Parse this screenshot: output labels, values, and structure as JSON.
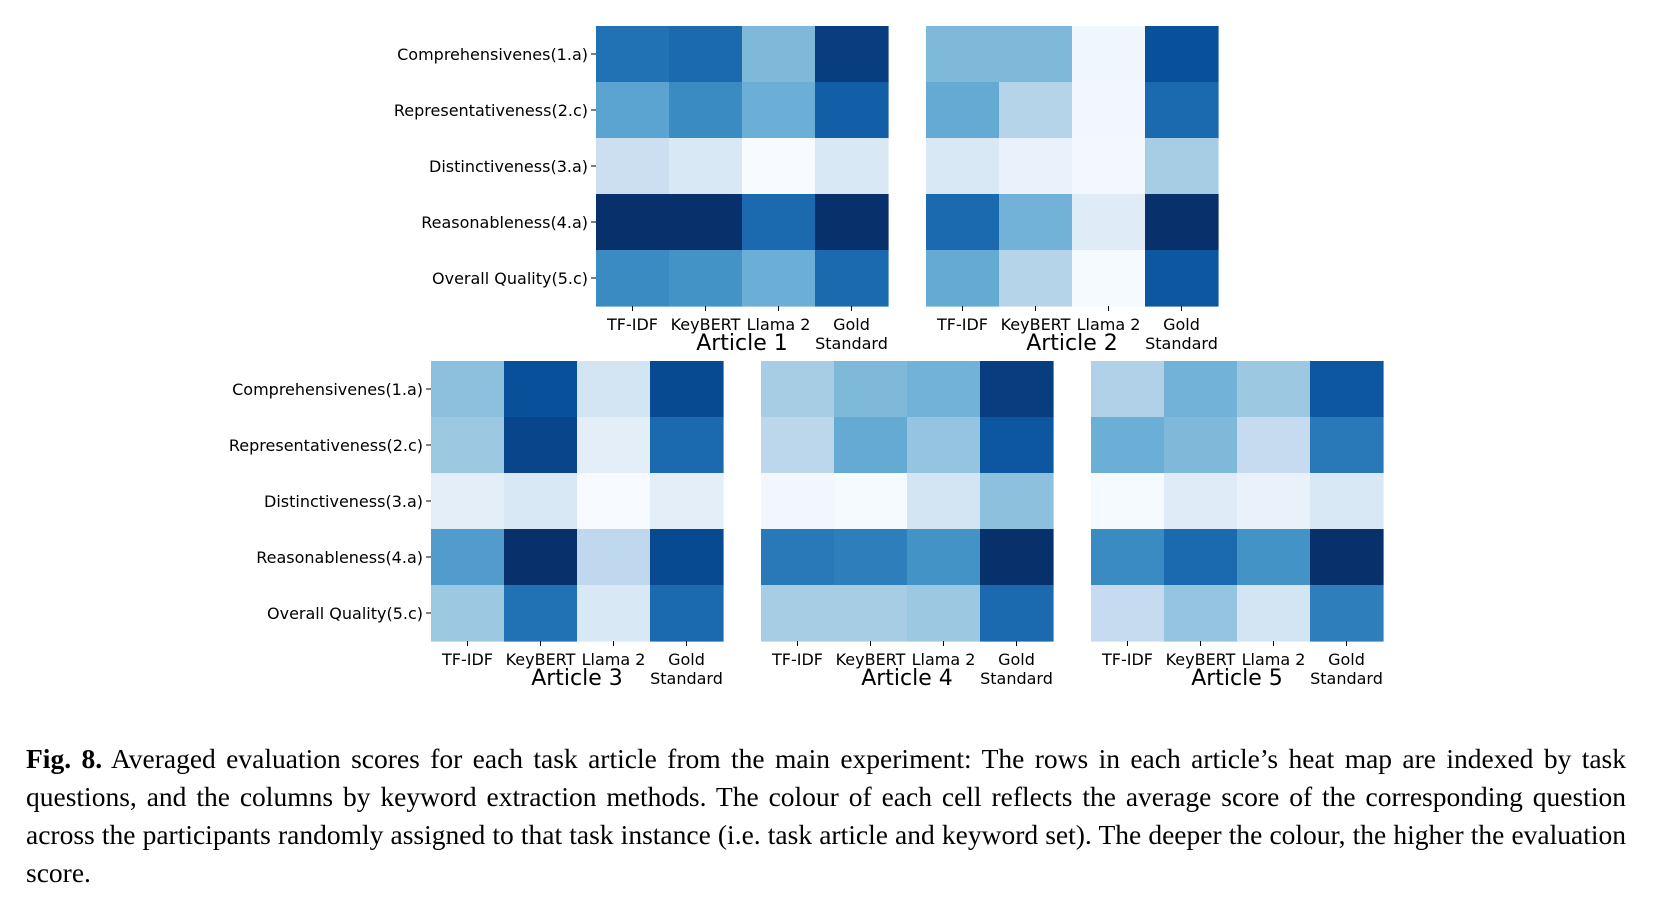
{
  "chart_data": [
    {
      "type": "heatmap",
      "title": "Article 1",
      "rows": [
        "Comprehensivenes(1.a)",
        "Representativeness(2.c)",
        "Distinctiveness(3.a)",
        "Reasonableness(4.a)",
        "Overall Quality(5.c)"
      ],
      "columns": [
        "TF-IDF",
        "KeyBERT",
        "Llama 2",
        "Gold Standard"
      ],
      "values": [
        [
          0.75,
          0.78,
          0.45,
          0.95
        ],
        [
          0.55,
          0.65,
          0.5,
          0.82
        ],
        [
          0.22,
          0.15,
          0.0,
          0.15
        ],
        [
          1.0,
          1.0,
          0.78,
          1.0
        ],
        [
          0.65,
          0.62,
          0.5,
          0.78
        ]
      ],
      "colormap": "Blues"
    },
    {
      "type": "heatmap",
      "title": "Article 2",
      "rows": [
        "",
        "",
        "",
        "",
        ""
      ],
      "columns": [
        "TF-IDF",
        "KeyBERT",
        "Llama 2",
        "Gold Standard"
      ],
      "values": [
        [
          0.45,
          0.45,
          0.04,
          0.88
        ],
        [
          0.52,
          0.3,
          0.03,
          0.78
        ],
        [
          0.15,
          0.07,
          0.02,
          0.35
        ],
        [
          0.78,
          0.48,
          0.12,
          1.0
        ],
        [
          0.52,
          0.3,
          0.01,
          0.85
        ]
      ],
      "colormap": "Blues"
    },
    {
      "type": "heatmap",
      "title": "Article 3",
      "rows": [
        "Comprehensivenes(1.a)",
        "Representativeness(2.c)",
        "Distinctiveness(3.a)",
        "Reasonableness(4.a)",
        "Overall Quality(5.c)"
      ],
      "columns": [
        "TF-IDF",
        "KeyBERT",
        "Llama 2",
        "Gold Standard"
      ],
      "values": [
        [
          0.42,
          0.88,
          0.18,
          0.9
        ],
        [
          0.38,
          0.92,
          0.1,
          0.78
        ],
        [
          0.1,
          0.15,
          0.0,
          0.1
        ],
        [
          0.58,
          1.0,
          0.27,
          0.9
        ],
        [
          0.38,
          0.75,
          0.15,
          0.78
        ]
      ],
      "colormap": "Blues"
    },
    {
      "type": "heatmap",
      "title": "Article 4",
      "rows": [
        "",
        "",
        "",
        "",
        ""
      ],
      "columns": [
        "TF-IDF",
        "KeyBERT",
        "Llama 2",
        "Gold Standard"
      ],
      "values": [
        [
          0.35,
          0.45,
          0.48,
          0.95
        ],
        [
          0.28,
          0.52,
          0.4,
          0.85
        ],
        [
          0.03,
          0.01,
          0.18,
          0.42
        ],
        [
          0.72,
          0.7,
          0.62,
          1.0
        ],
        [
          0.35,
          0.35,
          0.38,
          0.78
        ]
      ],
      "colormap": "Blues"
    },
    {
      "type": "heatmap",
      "title": "Article 5",
      "rows": [
        "",
        "",
        "",
        "",
        ""
      ],
      "columns": [
        "TF-IDF",
        "KeyBERT",
        "Llama 2",
        "Gold Standard"
      ],
      "values": [
        [
          0.32,
          0.48,
          0.38,
          0.85
        ],
        [
          0.5,
          0.45,
          0.25,
          0.72
        ],
        [
          0.01,
          0.12,
          0.07,
          0.15
        ],
        [
          0.65,
          0.78,
          0.62,
          1.0
        ],
        [
          0.25,
          0.4,
          0.18,
          0.7
        ]
      ],
      "colormap": "Blues"
    }
  ],
  "caption": {
    "label": "Fig. 8.",
    "text": "Averaged evaluation scores for each task article from the main experiment: The rows in each article’s heat map are indexed by task questions, and the columns by keyword extraction methods. The colour of each cell reflects the average score of the corresponding question across the participants randomly assigned to that task instance (i.e. task article and keyword set). The deeper the colour, the higher the evaluation score."
  }
}
